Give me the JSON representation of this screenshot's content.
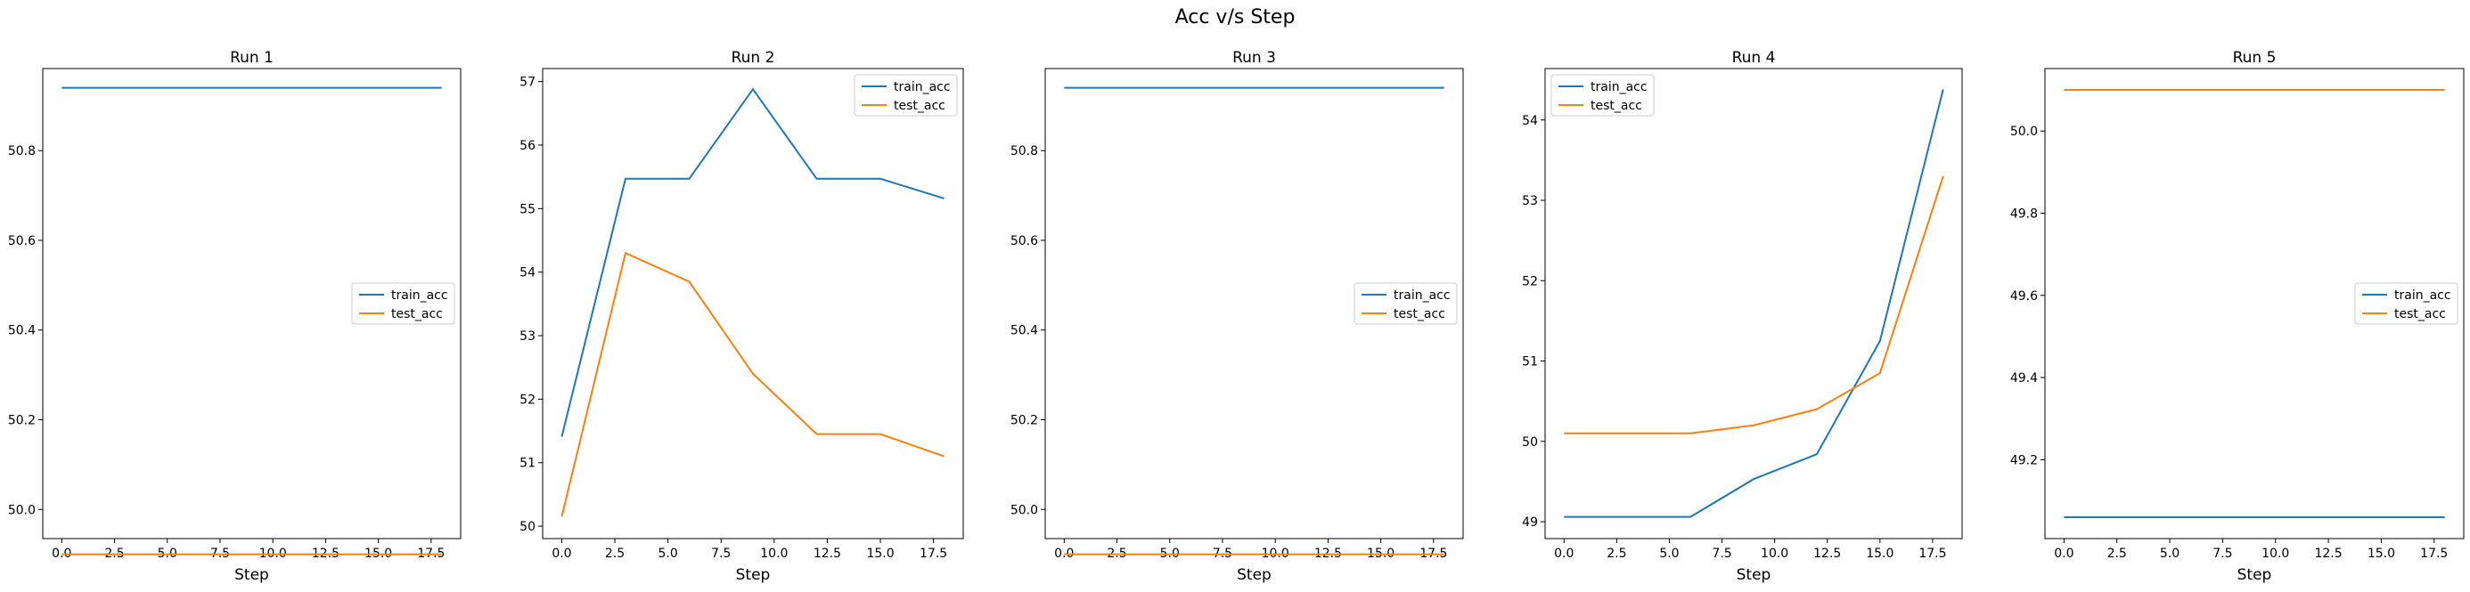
{
  "figure": {
    "title": "Acc v/s Step"
  },
  "colors": {
    "train_acc": "#1f77b4",
    "test_acc": "#ff7f0e"
  },
  "chart_data": [
    {
      "type": "line",
      "title": "Run 1",
      "xlabel": "Step",
      "ylabel": "",
      "xlim": [
        -0.9,
        18.9
      ],
      "ylim": [
        49.935,
        50.983
      ],
      "xticks": [
        0.0,
        2.5,
        5.0,
        7.5,
        10.0,
        12.5,
        15.0,
        17.5
      ],
      "xtick_labels": [
        "0.0",
        "2.5",
        "5.0",
        "7.5",
        "10.0",
        "12.5",
        "15.0",
        "17.5"
      ],
      "yticks": [
        50.0,
        50.2,
        50.4,
        50.6,
        50.8
      ],
      "ytick_labels": [
        "50.0",
        "50.2",
        "50.4",
        "50.6",
        "50.8"
      ],
      "legend": "center-right",
      "x": [
        0,
        3,
        6,
        9,
        12,
        15,
        18
      ],
      "series": [
        {
          "name": "train_acc",
          "values": [
            50.94,
            50.94,
            50.94,
            50.94,
            50.94,
            50.94,
            50.94
          ]
        },
        {
          "name": "test_acc",
          "values": [
            49.9,
            49.9,
            49.9,
            49.9,
            49.9,
            49.9,
            49.9
          ]
        }
      ]
    },
    {
      "type": "line",
      "title": "Run 2",
      "xlabel": "Step",
      "ylabel": "",
      "xlim": [
        -0.9,
        18.9
      ],
      "ylim": [
        49.805,
        57.205
      ],
      "xticks": [
        0.0,
        2.5,
        5.0,
        7.5,
        10.0,
        12.5,
        15.0,
        17.5
      ],
      "xtick_labels": [
        "0.0",
        "2.5",
        "5.0",
        "7.5",
        "10.0",
        "12.5",
        "15.0",
        "17.5"
      ],
      "yticks": [
        50,
        51,
        52,
        53,
        54,
        55,
        56,
        57
      ],
      "ytick_labels": [
        "50",
        "51",
        "52",
        "53",
        "54",
        "55",
        "56",
        "57"
      ],
      "legend": "top-right",
      "x": [
        0,
        3,
        6,
        9,
        12,
        15,
        18
      ],
      "series": [
        {
          "name": "train_acc",
          "values": [
            51.41,
            55.47,
            55.47,
            56.88,
            55.47,
            55.47,
            55.16
          ]
        },
        {
          "name": "test_acc",
          "values": [
            50.15,
            54.3,
            53.85,
            52.4,
            51.45,
            51.45,
            51.1
          ]
        }
      ]
    },
    {
      "type": "line",
      "title": "Run 3",
      "xlabel": "Step",
      "ylabel": "",
      "xlim": [
        -0.9,
        18.9
      ],
      "ylim": [
        49.935,
        50.983
      ],
      "xticks": [
        0.0,
        2.5,
        5.0,
        7.5,
        10.0,
        12.5,
        15.0,
        17.5
      ],
      "xtick_labels": [
        "0.0",
        "2.5",
        "5.0",
        "7.5",
        "10.0",
        "12.5",
        "15.0",
        "17.5"
      ],
      "yticks": [
        50.0,
        50.2,
        50.4,
        50.6,
        50.8
      ],
      "ytick_labels": [
        "50.0",
        "50.2",
        "50.4",
        "50.6",
        "50.8"
      ],
      "legend": "center-right",
      "x": [
        0,
        3,
        6,
        9,
        12,
        15,
        18
      ],
      "series": [
        {
          "name": "train_acc",
          "values": [
            50.94,
            50.94,
            50.94,
            50.94,
            50.94,
            50.94,
            50.94
          ]
        },
        {
          "name": "test_acc",
          "values": [
            49.9,
            49.9,
            49.9,
            49.9,
            49.9,
            49.9,
            49.9
          ]
        }
      ]
    },
    {
      "type": "line",
      "title": "Run 4",
      "xlabel": "Step",
      "ylabel": "",
      "xlim": [
        -0.9,
        18.9
      ],
      "ylim": [
        48.79,
        54.64
      ],
      "xticks": [
        0.0,
        2.5,
        5.0,
        7.5,
        10.0,
        12.5,
        15.0,
        17.5
      ],
      "xtick_labels": [
        "0.0",
        "2.5",
        "5.0",
        "7.5",
        "10.0",
        "12.5",
        "15.0",
        "17.5"
      ],
      "yticks": [
        49,
        50,
        51,
        52,
        53,
        54
      ],
      "ytick_labels": [
        "49",
        "50",
        "51",
        "52",
        "53",
        "54"
      ],
      "legend": "top-left",
      "x": [
        0,
        3,
        6,
        9,
        12,
        15,
        18
      ],
      "series": [
        {
          "name": "train_acc",
          "values": [
            49.06,
            49.06,
            49.06,
            49.53,
            49.84,
            51.25,
            54.38
          ]
        },
        {
          "name": "test_acc",
          "values": [
            50.1,
            50.1,
            50.1,
            50.2,
            50.4,
            50.85,
            53.3
          ]
        }
      ]
    },
    {
      "type": "line",
      "title": "Run 5",
      "xlabel": "Step",
      "ylabel": "",
      "xlim": [
        -0.9,
        18.9
      ],
      "ylim": [
        49.008,
        50.152
      ],
      "xticks": [
        0.0,
        2.5,
        5.0,
        7.5,
        10.0,
        12.5,
        15.0,
        17.5
      ],
      "xtick_labels": [
        "0.0",
        "2.5",
        "5.0",
        "7.5",
        "10.0",
        "12.5",
        "15.0",
        "17.5"
      ],
      "yticks": [
        49.2,
        49.4,
        49.6,
        49.8,
        50.0
      ],
      "ytick_labels": [
        "49.2",
        "49.4",
        "49.6",
        "49.8",
        "50.0"
      ],
      "legend": "center-right",
      "x": [
        0,
        3,
        6,
        9,
        12,
        15,
        18
      ],
      "series": [
        {
          "name": "train_acc",
          "values": [
            49.06,
            49.06,
            49.06,
            49.06,
            49.06,
            49.06,
            49.06
          ]
        },
        {
          "name": "test_acc",
          "values": [
            50.1,
            50.1,
            50.1,
            50.1,
            50.1,
            50.1,
            50.1
          ]
        }
      ]
    }
  ]
}
